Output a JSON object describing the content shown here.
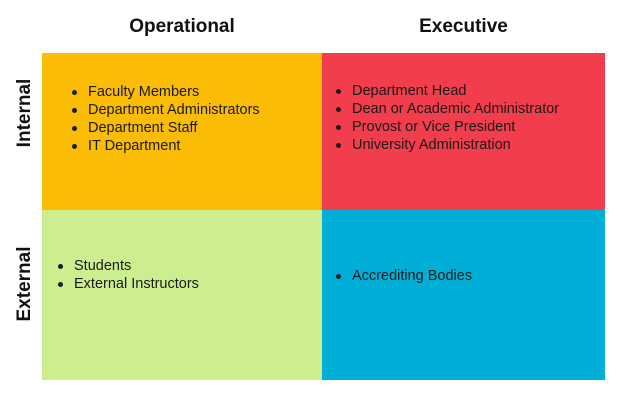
{
  "columns": {
    "operational": "Operational",
    "executive": "Executive"
  },
  "rows": {
    "internal": "Internal",
    "external": "External"
  },
  "colors": {
    "internal_operational": "#FBBC05",
    "internal_executive": "#F23D4C",
    "external_operational": "#CCEE8E",
    "external_executive": "#00AFD8"
  },
  "quadrants": {
    "internal_operational": [
      "Faculty Members",
      "Department Administrators",
      "Department Staff",
      "IT Department"
    ],
    "internal_executive": [
      "Department Head",
      "Dean or Academic Administrator",
      "Provost or Vice President",
      "University Administration"
    ],
    "external_operational": [
      "Students",
      "External Instructors"
    ],
    "external_executive": [
      "Accrediting Bodies"
    ]
  }
}
